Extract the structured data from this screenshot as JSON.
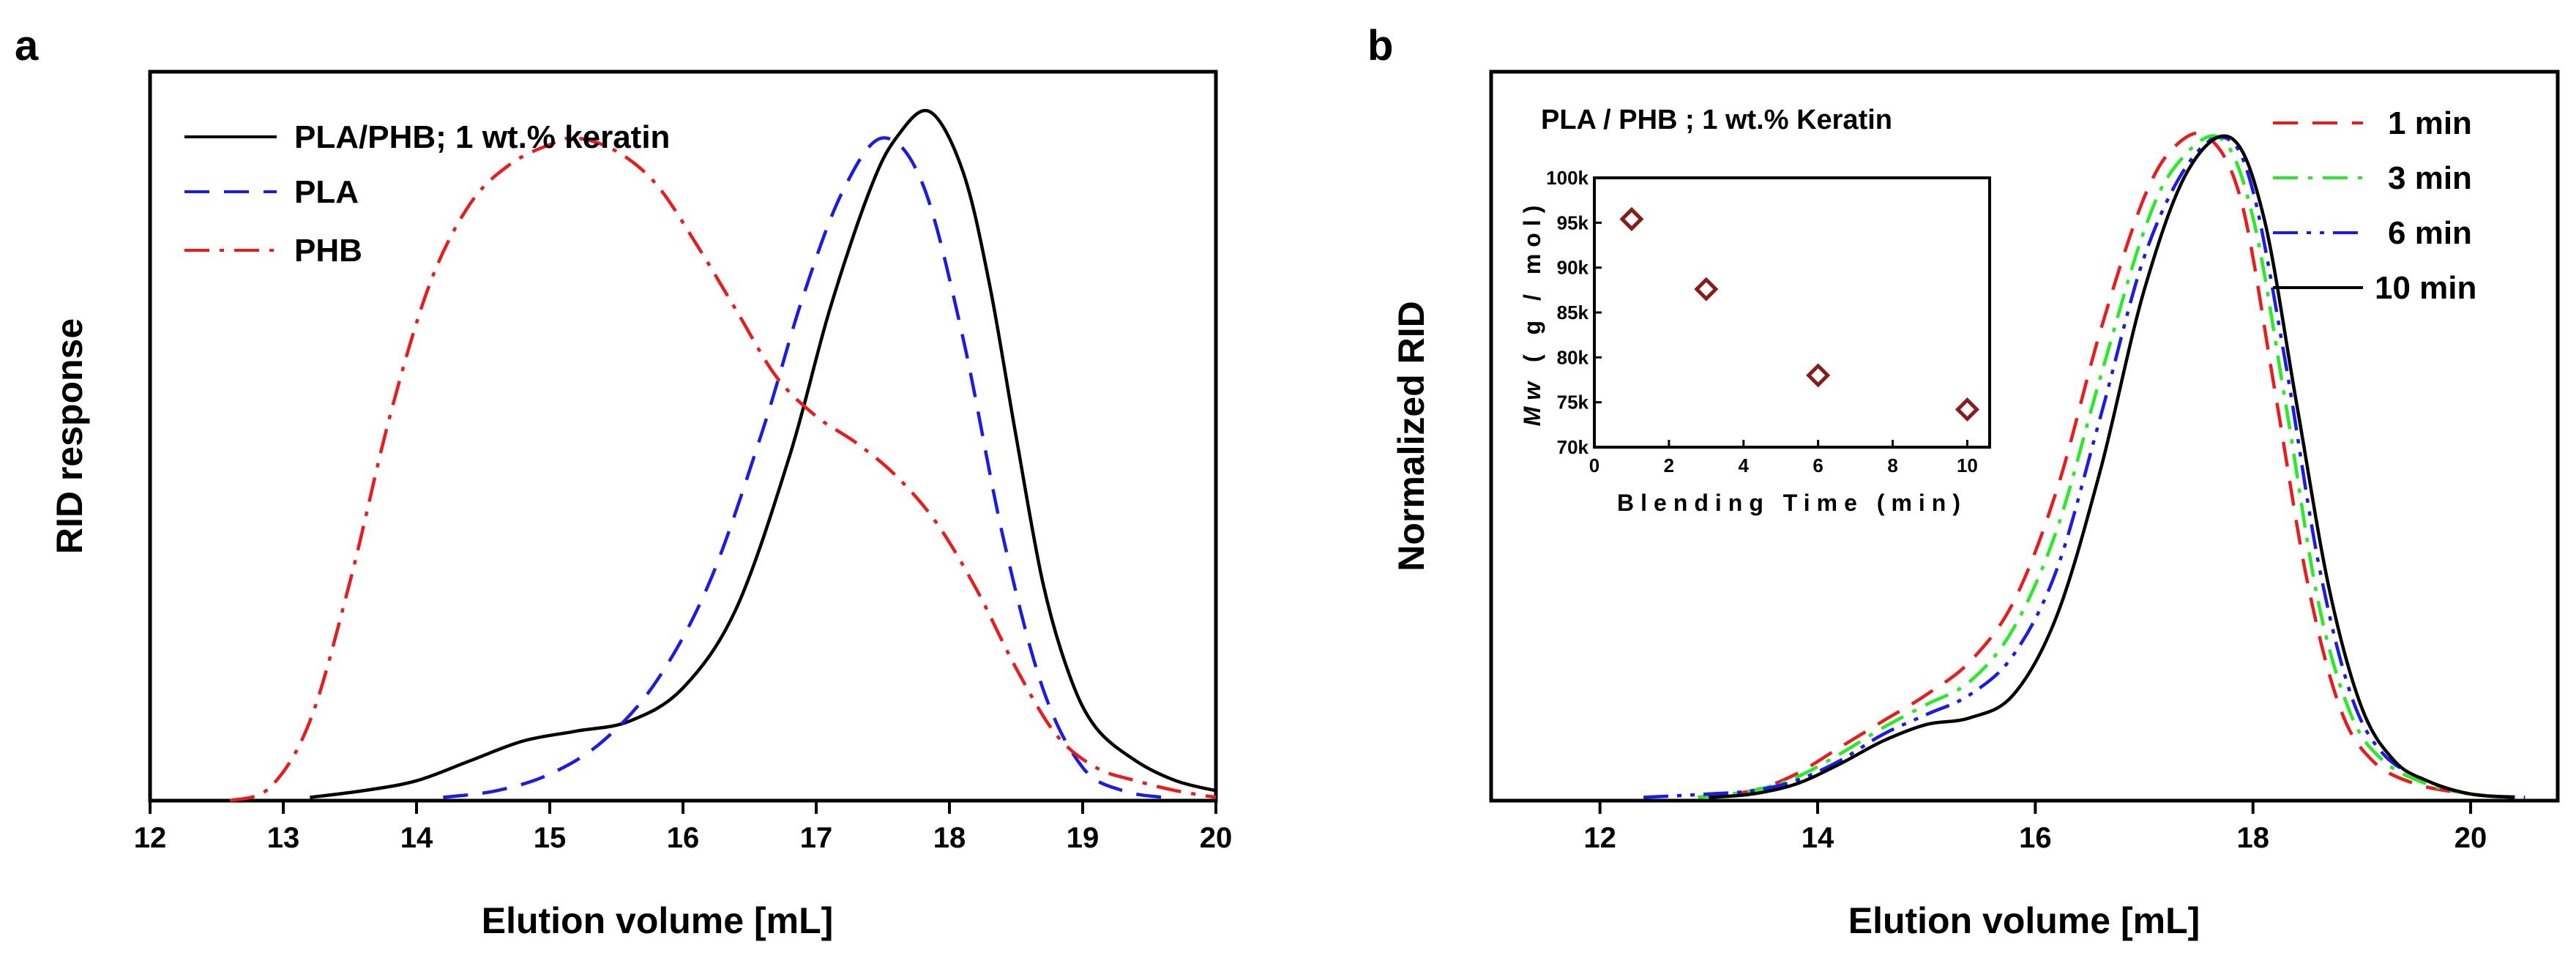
{
  "chart_data": [
    {
      "panel_label": "a",
      "type": "line",
      "xlabel": "Elution volume [mL]",
      "ylabel": "RID response",
      "xlim": [
        12,
        20
      ],
      "ylim": [
        0,
        1.1
      ],
      "xticks": [
        "12",
        "13",
        "14",
        "15",
        "16",
        "17",
        "18",
        "19",
        "20"
      ],
      "show_y_ticks": false,
      "legend_position": "top-left",
      "series": [
        {
          "name": "PLA/PHB; 1 wt.% keratin",
          "color": "#000000",
          "dash": "solid",
          "x": [
            13.2,
            13.6,
            14.0,
            14.4,
            14.8,
            15.2,
            15.6,
            16.0,
            16.4,
            16.8,
            17.1,
            17.4,
            17.6,
            17.85,
            18.1,
            18.3,
            18.5,
            18.7,
            18.9,
            19.1,
            19.4,
            19.7,
            20.0
          ],
          "y": [
            0.005,
            0.015,
            0.03,
            0.06,
            0.09,
            0.105,
            0.12,
            0.17,
            0.29,
            0.52,
            0.74,
            0.92,
            1.0,
            1.04,
            0.95,
            0.78,
            0.55,
            0.33,
            0.19,
            0.11,
            0.06,
            0.03,
            0.015
          ]
        },
        {
          "name": "PLA",
          "color": "#1a1aee",
          "dash": "dash",
          "x": [
            14.2,
            14.6,
            15.0,
            15.4,
            15.8,
            16.2,
            16.6,
            16.9,
            17.2,
            17.5,
            17.8,
            18.1,
            18.4,
            18.7,
            19.0,
            19.3,
            19.6
          ],
          "y": [
            0.005,
            0.015,
            0.04,
            0.09,
            0.18,
            0.33,
            0.56,
            0.76,
            0.92,
            1.0,
            0.93,
            0.7,
            0.4,
            0.17,
            0.05,
            0.015,
            0.005
          ]
        },
        {
          "name": "PHB",
          "color": "#ee1a1a",
          "dash": "dashdot",
          "x": [
            12.6,
            12.9,
            13.2,
            13.5,
            13.8,
            14.1,
            14.4,
            14.7,
            15.0,
            15.2,
            15.5,
            15.8,
            16.1,
            16.4,
            16.7,
            17.0,
            17.3,
            17.6,
            17.9,
            18.2,
            18.5,
            18.8,
            19.1,
            19.4,
            19.7,
            20.0
          ],
          "y": [
            0.0,
            0.02,
            0.12,
            0.33,
            0.58,
            0.78,
            0.9,
            0.96,
            0.99,
            1.0,
            0.98,
            0.93,
            0.84,
            0.74,
            0.64,
            0.58,
            0.54,
            0.49,
            0.42,
            0.32,
            0.2,
            0.1,
            0.05,
            0.03,
            0.015,
            0.005
          ]
        }
      ]
    },
    {
      "panel_label": "b",
      "type": "line",
      "xlabel": "Elution volume [mL]",
      "ylabel": "Normalized RID",
      "xlim": [
        11,
        20.8
      ],
      "ylim": [
        0,
        1.1
      ],
      "xticks": [
        "12",
        "14",
        "16",
        "18",
        "20"
      ],
      "show_y_ticks": false,
      "legend_position": "top-right",
      "series": [
        {
          "name": "1 min",
          "color": "#ee1a1a",
          "dash": "dash",
          "x": [
            12.9,
            13.4,
            13.8,
            14.2,
            14.6,
            15.0,
            15.4,
            15.8,
            16.2,
            16.6,
            17.0,
            17.3,
            17.6,
            17.9,
            18.2,
            18.5,
            18.8,
            19.1,
            19.5,
            20.0,
            20.4
          ],
          "y": [
            0.005,
            0.015,
            0.04,
            0.08,
            0.12,
            0.16,
            0.21,
            0.3,
            0.47,
            0.71,
            0.91,
            0.99,
            1.0,
            0.9,
            0.62,
            0.33,
            0.14,
            0.06,
            0.025,
            0.01,
            0.005
          ]
        },
        {
          "name": "3 min",
          "color": "#22ee22",
          "dash": "dashdot",
          "x": [
            12.9,
            13.4,
            13.8,
            14.2,
            14.6,
            15.0,
            15.4,
            15.8,
            16.2,
            16.6,
            17.0,
            17.3,
            17.7,
            18.0,
            18.3,
            18.6,
            18.9,
            19.2,
            19.6,
            20.0,
            20.4
          ],
          "y": [
            0.005,
            0.015,
            0.035,
            0.07,
            0.11,
            0.145,
            0.18,
            0.26,
            0.41,
            0.64,
            0.86,
            0.96,
            1.0,
            0.88,
            0.6,
            0.3,
            0.13,
            0.06,
            0.025,
            0.01,
            0.005
          ]
        },
        {
          "name": "6 min",
          "color": "#1a1aee",
          "dash": "dashdotdot",
          "x": [
            12.4,
            13.0,
            13.4,
            13.8,
            14.2,
            14.6,
            15.0,
            15.4,
            15.8,
            16.2,
            16.6,
            17.0,
            17.4,
            17.75,
            18.0,
            18.3,
            18.6,
            18.9,
            19.2,
            19.6,
            20.0,
            20.5
          ],
          "y": [
            0.005,
            0.01,
            0.015,
            0.03,
            0.06,
            0.1,
            0.13,
            0.16,
            0.22,
            0.35,
            0.58,
            0.82,
            0.96,
            1.0,
            0.92,
            0.66,
            0.36,
            0.16,
            0.07,
            0.03,
            0.01,
            0.005
          ]
        },
        {
          "name": "10 min",
          "color": "#000000",
          "dash": "solid",
          "x": [
            13.0,
            13.4,
            13.8,
            14.2,
            14.6,
            15.0,
            15.4,
            15.8,
            16.2,
            16.6,
            17.0,
            17.4,
            17.8,
            18.1,
            18.4,
            18.7,
            19.0,
            19.3,
            19.6,
            20.0,
            20.4
          ],
          "y": [
            0.005,
            0.01,
            0.025,
            0.055,
            0.09,
            0.115,
            0.125,
            0.16,
            0.28,
            0.5,
            0.77,
            0.95,
            1.0,
            0.88,
            0.6,
            0.32,
            0.14,
            0.06,
            0.03,
            0.01,
            0.005
          ]
        }
      ],
      "inset": {
        "type": "scatter",
        "heading": "PLA / PHB ; 1 wt.% Keratin",
        "xlabel": "Blending Time (min)",
        "ylabel_italic": "Mw",
        "ylabel_rest": " ( g / mol)",
        "xlim": [
          0,
          10.6
        ],
        "ylim": [
          70000,
          100000
        ],
        "xticks": [
          "0",
          "2",
          "4",
          "6",
          "8",
          "10"
        ],
        "yticks": [
          "70k",
          "75k",
          "80k",
          "85k",
          "90k",
          "95k",
          "100k"
        ],
        "marker": "diamond-open",
        "marker_color": "#8b1a1a",
        "x": [
          1,
          3,
          6,
          10
        ],
        "y": [
          95400,
          87600,
          78000,
          74200
        ]
      }
    }
  ]
}
